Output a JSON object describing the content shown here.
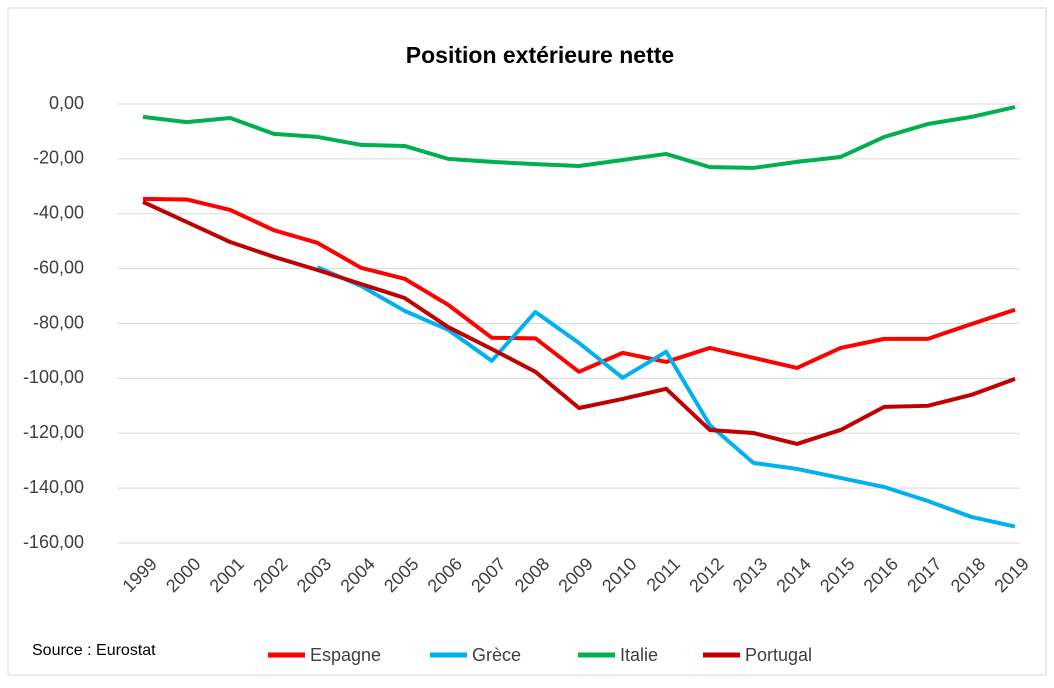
{
  "chart_data": {
    "type": "line",
    "title": "Position extérieure nette",
    "annotation": "Source : Eurostat",
    "categories": [
      "1999",
      "2000",
      "2001",
      "2002",
      "2003",
      "2004",
      "2005",
      "2006",
      "2007",
      "2008",
      "2009",
      "2010",
      "2011",
      "2012",
      "2013",
      "2014",
      "2015",
      "2016",
      "2017",
      "2018",
      "2019"
    ],
    "series": [
      {
        "name": "Espagne",
        "color": "#ff0000",
        "values": [
          -34.6,
          -34.8,
          -38.6,
          -46,
          -50.6,
          -59.7,
          -63.7,
          -73.2,
          -85.2,
          -85.4,
          -97.6,
          -90.7,
          -94,
          -88.9,
          -92.5,
          -96.2,
          -88.9,
          -85.6,
          -85.6,
          -80.2,
          -75
        ]
      },
      {
        "name": "Grèce",
        "color": "#00b0f0",
        "values": [
          null,
          null,
          null,
          null,
          -59.5,
          -66.3,
          -75.4,
          -82.3,
          -93.6,
          -75.8,
          -87.1,
          -99.8,
          -90.3,
          -117,
          -130.8,
          -133,
          -136.3,
          -139.6,
          -144.7,
          -150.5,
          -154
        ]
      },
      {
        "name": "Italie",
        "color": "#00b050",
        "values": [
          -4.7,
          -6.6,
          -5.1,
          -10.9,
          -12,
          -14.9,
          -15.3,
          -20,
          -21.1,
          -21.9,
          -22.6,
          -20.4,
          -18.2,
          -23,
          -23.3,
          -21.1,
          -19.3,
          -12,
          -7.3,
          -4.7,
          -1.1
        ]
      },
      {
        "name": "Portugal",
        "color": "#c00000",
        "values": [
          -35.7,
          -43,
          -50.3,
          -55.7,
          -60.5,
          -65.6,
          -70.7,
          -81.3,
          -89.3,
          -97.6,
          -110.8,
          -107.5,
          -103.8,
          -118.8,
          -119.9,
          -123.9,
          -118.8,
          -110.4,
          -110,
          -106,
          -100.2
        ]
      }
    ],
    "ylim": [
      -160,
      0
    ],
    "yticks": [
      {
        "value": 0,
        "label": "0,00"
      },
      {
        "value": -20,
        "label": "-20,00"
      },
      {
        "value": -40,
        "label": "-40,00"
      },
      {
        "value": -60,
        "label": "-60,00"
      },
      {
        "value": -80,
        "label": "-80,00"
      },
      {
        "value": -100,
        "label": "-100,00"
      },
      {
        "value": -120,
        "label": "-120,00"
      },
      {
        "value": -140,
        "label": "-140,00"
      },
      {
        "value": -160,
        "label": "-160,00"
      }
    ],
    "grid": true,
    "legend": "bottom"
  }
}
